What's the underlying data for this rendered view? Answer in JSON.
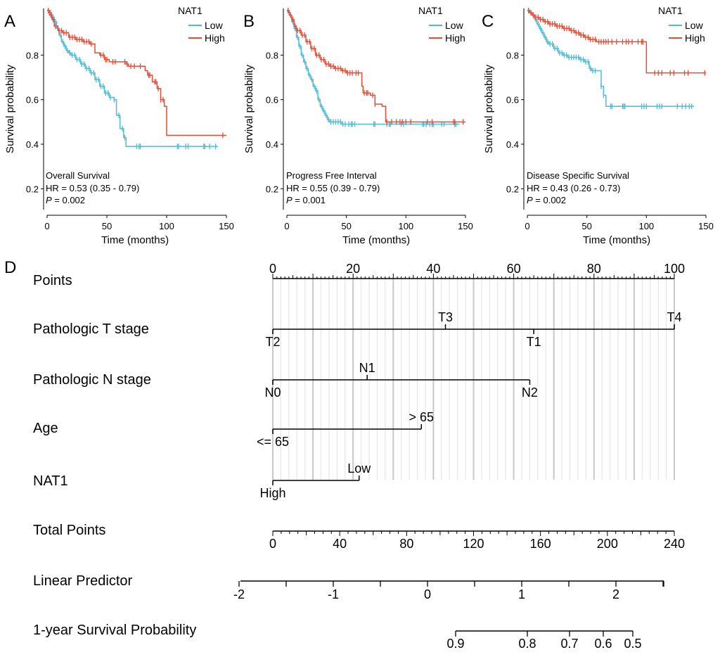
{
  "colors": {
    "low": "#4DBBD5",
    "high": "#E64B35",
    "axis": "#000000",
    "grid": "#bdbdbd"
  },
  "km_panels": [
    {
      "letter": "A",
      "annotation": "Overall Survival",
      "hr": "HR = 0.53 (0.35 -  0.79)",
      "p_label": "P",
      "p_value": " = 0.002",
      "xlabel": "Time (months)",
      "ylabel": "Survival probability",
      "xlim": [
        0,
        150
      ],
      "ylim": [
        0.1,
        1.0
      ],
      "xticks": [
        "0",
        "50",
        "100",
        "150"
      ],
      "yticks": [
        "0.2",
        "0.4",
        "0.6",
        "0.8"
      ],
      "legend_title": "NAT1",
      "legend_items": [
        "Low",
        "High"
      ]
    },
    {
      "letter": "B",
      "annotation": "Progress Free Interval",
      "hr": "HR = 0.55 (0.39 -  0.79)",
      "p_label": "P",
      "p_value": " = 0.001",
      "xlabel": "Time (months)",
      "ylabel": "Survival probability",
      "xlim": [
        0,
        150
      ],
      "ylim": [
        0.1,
        1.0
      ],
      "xticks": [
        "0",
        "50",
        "100",
        "150"
      ],
      "yticks": [
        "0.2",
        "0.4",
        "0.6",
        "0.8"
      ],
      "legend_title": "NAT1",
      "legend_items": [
        "Low",
        "High"
      ]
    },
    {
      "letter": "C",
      "annotation": "Disease Specific Survival",
      "hr": "HR = 0.43 (0.26 -  0.73)",
      "p_label": "P",
      "p_value": " = 0.002",
      "xlabel": "Time (months)",
      "ylabel": "Survival probability",
      "xlim": [
        0,
        150
      ],
      "ylim": [
        0.1,
        1.0
      ],
      "xticks": [
        "0",
        "50",
        "100",
        "150"
      ],
      "yticks": [
        "0.2",
        "0.4",
        "0.6",
        "0.8"
      ],
      "legend_title": "NAT1",
      "legend_items": [
        "Low",
        "High"
      ]
    }
  ],
  "chart_data": [
    {
      "type": "line",
      "title": "Overall Survival",
      "xlabel": "Time (months)",
      "ylabel": "Survival probability",
      "xlim": [
        0,
        150
      ],
      "ylim": [
        0.1,
        1.0
      ],
      "series": [
        {
          "name": "Low",
          "step": [
            [
              0,
              1.0
            ],
            [
              2,
              0.99
            ],
            [
              4,
              0.97
            ],
            [
              6,
              0.95
            ],
            [
              8,
              0.92
            ],
            [
              10,
              0.89
            ],
            [
              12,
              0.86
            ],
            [
              14,
              0.84
            ],
            [
              16,
              0.82
            ],
            [
              18,
              0.81
            ],
            [
              20,
              0.8
            ],
            [
              24,
              0.78
            ],
            [
              28,
              0.76
            ],
            [
              32,
              0.74
            ],
            [
              36,
              0.72
            ],
            [
              40,
              0.69
            ],
            [
              44,
              0.66
            ],
            [
              48,
              0.63
            ],
            [
              52,
              0.61
            ],
            [
              56,
              0.6
            ],
            [
              58,
              0.53
            ],
            [
              61,
              0.47
            ],
            [
              64,
              0.43
            ],
            [
              66,
              0.39
            ],
            [
              143,
              0.39
            ]
          ],
          "censor_x": [
            3,
            5,
            7,
            9,
            11,
            13,
            15,
            17,
            19,
            21,
            23,
            25,
            27,
            29,
            31,
            33,
            35,
            37,
            39,
            41,
            43,
            45,
            47,
            49,
            51,
            53,
            56,
            60,
            63,
            65,
            75,
            77,
            78,
            109,
            110,
            116,
            118,
            131,
            132,
            136,
            141
          ]
        },
        {
          "name": "High",
          "step": [
            [
              0,
              1.0
            ],
            [
              2,
              0.98
            ],
            [
              4,
              0.96
            ],
            [
              6,
              0.93
            ],
            [
              9,
              0.91
            ],
            [
              13,
              0.9
            ],
            [
              18,
              0.88
            ],
            [
              24,
              0.87
            ],
            [
              30,
              0.86
            ],
            [
              36,
              0.85
            ],
            [
              40,
              0.81
            ],
            [
              44,
              0.8
            ],
            [
              48,
              0.78
            ],
            [
              52,
              0.77
            ],
            [
              60,
              0.77
            ],
            [
              66,
              0.76
            ],
            [
              68,
              0.75
            ],
            [
              80,
              0.75
            ],
            [
              82,
              0.73
            ],
            [
              84,
              0.71
            ],
            [
              88,
              0.68
            ],
            [
              92,
              0.65
            ],
            [
              95,
              0.6
            ],
            [
              98,
              0.57
            ],
            [
              100,
              0.44
            ],
            [
              150,
              0.44
            ]
          ],
          "censor_x": [
            1,
            3,
            5,
            7,
            10,
            12,
            14,
            16,
            19,
            21,
            23,
            25,
            27,
            29,
            31,
            33,
            35,
            37,
            45,
            47,
            49,
            50,
            55,
            57,
            65,
            67,
            70,
            73,
            78,
            85,
            86,
            90,
            91,
            93,
            95,
            97,
            147
          ]
        }
      ]
    },
    {
      "type": "line",
      "title": "Progress Free Interval",
      "xlabel": "Time (months)",
      "ylabel": "Survival probability",
      "xlim": [
        0,
        150
      ],
      "ylim": [
        0.1,
        1.0
      ],
      "series": [
        {
          "name": "Low",
          "step": [
            [
              0,
              1.0
            ],
            [
              2,
              0.98
            ],
            [
              4,
              0.95
            ],
            [
              6,
              0.92
            ],
            [
              8,
              0.88
            ],
            [
              10,
              0.84
            ],
            [
              12,
              0.8
            ],
            [
              14,
              0.77
            ],
            [
              16,
              0.74
            ],
            [
              18,
              0.71
            ],
            [
              20,
              0.69
            ],
            [
              22,
              0.66
            ],
            [
              24,
              0.64
            ],
            [
              26,
              0.6
            ],
            [
              28,
              0.57
            ],
            [
              30,
              0.55
            ],
            [
              32,
              0.53
            ],
            [
              34,
              0.51
            ],
            [
              36,
              0.5
            ],
            [
              40,
              0.5
            ],
            [
              44,
              0.5
            ],
            [
              46,
              0.49
            ],
            [
              145,
              0.49
            ]
          ],
          "censor_x": [
            1,
            3,
            5,
            7,
            9,
            11,
            13,
            15,
            17,
            19,
            21,
            23,
            25,
            27,
            29,
            31,
            33,
            35,
            37,
            39,
            41,
            43,
            45,
            47,
            49,
            52,
            54,
            55,
            57,
            73,
            74,
            84,
            86,
            87,
            96,
            98,
            114,
            115,
            117,
            120,
            122,
            123,
            130,
            132,
            141,
            142
          ]
        },
        {
          "name": "High",
          "step": [
            [
              0,
              1.0
            ],
            [
              2,
              0.98
            ],
            [
              4,
              0.96
            ],
            [
              6,
              0.93
            ],
            [
              8,
              0.91
            ],
            [
              12,
              0.89
            ],
            [
              16,
              0.86
            ],
            [
              20,
              0.83
            ],
            [
              24,
              0.8
            ],
            [
              28,
              0.78
            ],
            [
              32,
              0.76
            ],
            [
              36,
              0.75
            ],
            [
              40,
              0.74
            ],
            [
              46,
              0.73
            ],
            [
              50,
              0.72
            ],
            [
              60,
              0.72
            ],
            [
              63,
              0.66
            ],
            [
              64,
              0.63
            ],
            [
              70,
              0.62
            ],
            [
              74,
              0.58
            ],
            [
              80,
              0.57
            ],
            [
              83,
              0.5
            ],
            [
              150,
              0.5
            ]
          ],
          "censor_x": [
            1,
            3,
            5,
            7,
            9,
            11,
            13,
            15,
            17,
            19,
            21,
            23,
            25,
            27,
            29,
            31,
            33,
            35,
            37,
            39,
            41,
            43,
            45,
            47,
            49,
            51,
            53,
            55,
            58,
            60,
            65,
            67,
            68,
            72,
            74,
            84,
            88,
            92,
            95,
            97,
            100,
            104,
            118,
            122,
            140,
            141,
            148
          ]
        }
      ]
    },
    {
      "type": "line",
      "title": "Disease Specific Survival",
      "xlabel": "Time (months)",
      "ylabel": "Survival probability",
      "xlim": [
        0,
        150
      ],
      "ylim": [
        0.1,
        1.0
      ],
      "series": [
        {
          "name": "Low",
          "step": [
            [
              0,
              1.0
            ],
            [
              2,
              0.99
            ],
            [
              4,
              0.98
            ],
            [
              6,
              0.96
            ],
            [
              8,
              0.94
            ],
            [
              10,
              0.92
            ],
            [
              12,
              0.9
            ],
            [
              14,
              0.88
            ],
            [
              16,
              0.86
            ],
            [
              18,
              0.85
            ],
            [
              22,
              0.83
            ],
            [
              26,
              0.81
            ],
            [
              30,
              0.8
            ],
            [
              34,
              0.79
            ],
            [
              38,
              0.79
            ],
            [
              44,
              0.78
            ],
            [
              48,
              0.77
            ],
            [
              52,
              0.74
            ],
            [
              54,
              0.73
            ],
            [
              60,
              0.73
            ],
            [
              62,
              0.66
            ],
            [
              64,
              0.62
            ],
            [
              66,
              0.57
            ],
            [
              140,
              0.57
            ]
          ],
          "censor_x": [
            1,
            3,
            5,
            7,
            9,
            11,
            13,
            15,
            17,
            19,
            21,
            23,
            25,
            27,
            29,
            31,
            33,
            35,
            37,
            39,
            41,
            43,
            45,
            47,
            49,
            51,
            53,
            55,
            57,
            62,
            64,
            70,
            71,
            80,
            81,
            82,
            96,
            98,
            100,
            109,
            111,
            113,
            126,
            130,
            133,
            136,
            138
          ]
        },
        {
          "name": "High",
          "step": [
            [
              0,
              1.0
            ],
            [
              2,
              0.99
            ],
            [
              4,
              0.98
            ],
            [
              6,
              0.97
            ],
            [
              10,
              0.96
            ],
            [
              14,
              0.95
            ],
            [
              18,
              0.94
            ],
            [
              24,
              0.93
            ],
            [
              30,
              0.92
            ],
            [
              36,
              0.91
            ],
            [
              40,
              0.9
            ],
            [
              44,
              0.89
            ],
            [
              48,
              0.88
            ],
            [
              52,
              0.87
            ],
            [
              58,
              0.86
            ],
            [
              100,
              0.72
            ],
            [
              150,
              0.72
            ]
          ],
          "censor_x": [
            1,
            3,
            5,
            7,
            9,
            11,
            13,
            15,
            17,
            19,
            21,
            23,
            25,
            27,
            29,
            31,
            33,
            35,
            37,
            39,
            41,
            43,
            45,
            47,
            49,
            51,
            53,
            55,
            57,
            60,
            62,
            64,
            66,
            68,
            71,
            75,
            80,
            83,
            85,
            88,
            93,
            96,
            97,
            107,
            110,
            113,
            120,
            123,
            132,
            135,
            149
          ]
        }
      ]
    },
    {
      "type": "nomogram",
      "panel_letter": "D",
      "points_axis": {
        "label": "Points",
        "min": 0,
        "max": 100,
        "ticks": [
          "0",
          "20",
          "40",
          "60",
          "80",
          "100"
        ]
      },
      "variables": [
        {
          "label": "Pathologic T stage",
          "line": [
            0,
            100
          ],
          "levels": [
            {
              "name": "T2",
              "points": 0,
              "side": "below"
            },
            {
              "name": "T3",
              "points": 43,
              "side": "above"
            },
            {
              "name": "T1",
              "points": 65,
              "side": "below"
            },
            {
              "name": "T4",
              "points": 100,
              "side": "above"
            }
          ]
        },
        {
          "label": "Pathologic N stage",
          "line": [
            0,
            64
          ],
          "levels": [
            {
              "name": "N0",
              "points": 0,
              "side": "below"
            },
            {
              "name": "N1",
              "points": 23.5,
              "side": "above"
            },
            {
              "name": "N2",
              "points": 64,
              "side": "below"
            }
          ]
        },
        {
          "label": "Age",
          "line": [
            0,
            37
          ],
          "levels": [
            {
              "name": "<= 65",
              "points": 0,
              "side": "below"
            },
            {
              "name": "> 65",
              "points": 37,
              "side": "above"
            }
          ]
        },
        {
          "label": "NAT1",
          "line": [
            0,
            21.5
          ],
          "levels": [
            {
              "name": "High",
              "points": 0,
              "side": "below"
            },
            {
              "name": "Low",
              "points": 21.5,
              "side": "above"
            }
          ]
        }
      ],
      "total_points": {
        "label": "Total Points",
        "min": 0,
        "max": 240,
        "ticks": [
          "0",
          "40",
          "80",
          "120",
          "160",
          "200",
          "240"
        ]
      },
      "linear_predictor": {
        "label": "Linear Predictor",
        "ticks": [
          "-2",
          "-1",
          "0",
          "1",
          "2"
        ]
      },
      "survival_1yr": {
        "label": "1-year Survival Probability",
        "ticks": [
          "0.9",
          "0.8",
          "0.7",
          "0.6",
          "0.5"
        ]
      }
    }
  ]
}
